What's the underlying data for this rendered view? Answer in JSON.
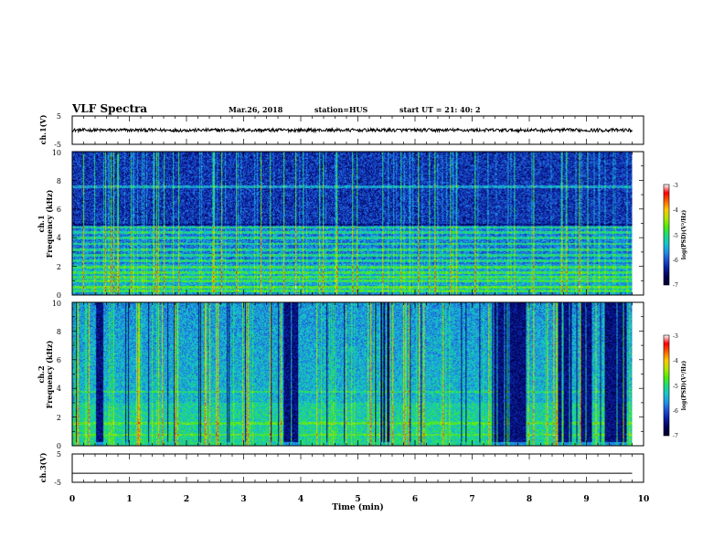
{
  "header": {
    "title": "VLF Spectra",
    "date": "Mar.26, 2018",
    "station": "station=HUS",
    "start": "start UT = 21: 40: 2"
  },
  "chart_data": [
    {
      "type": "line",
      "name": "ch1-voltage",
      "ylabel": "ch.1(V)",
      "xlim": [
        0,
        10
      ],
      "ylim": [
        -5,
        5
      ],
      "yticks": [
        "5",
        "-5"
      ],
      "trace_level": 0,
      "trace_amplitude": 0.6
    },
    {
      "type": "heatmap",
      "name": "ch1-spectrogram",
      "ylabel_line1": "ch.1",
      "ylabel_line2": "Frequency (kHz)",
      "xlim": [
        0,
        10
      ],
      "ylim": [
        0,
        10
      ],
      "yticks": [
        "0",
        "2",
        "4",
        "6",
        "8",
        "10"
      ],
      "data_end_min": 9.8,
      "colorbar": {
        "label": "log(PSD)(V²/Hz)",
        "range": [
          -7,
          -3
        ],
        "ticks": [
          "-3",
          "-4",
          "-5",
          "-6",
          "-7"
        ]
      },
      "horizontal_bands_khz": [
        0.3,
        0.55,
        1.0,
        1.3,
        1.6,
        2.0,
        2.4,
        2.8,
        3.2,
        3.6,
        4.0,
        4.4,
        4.8,
        7.6
      ]
    },
    {
      "type": "heatmap",
      "name": "ch2-spectrogram",
      "ylabel_line1": "ch.2",
      "ylabel_line2": "Frequency (kHz)",
      "xlim": [
        0,
        10
      ],
      "ylim": [
        0,
        10
      ],
      "yticks": [
        "0",
        "2",
        "4",
        "6",
        "8",
        "10"
      ],
      "data_end_min": 9.8,
      "colorbar": {
        "label": "log(PSD)(V²/Hz)",
        "range": [
          -7,
          -3
        ],
        "ticks": [
          "-3",
          "-4",
          "-5",
          "-6",
          "-7"
        ]
      },
      "dark_intervals_min": [
        [
          0.4,
          0.55
        ],
        [
          3.7,
          3.95
        ],
        [
          5.4,
          5.55
        ],
        [
          7.35,
          7.95
        ],
        [
          8.5,
          8.75
        ],
        [
          8.9,
          9.1
        ],
        [
          9.3,
          9.7
        ]
      ]
    },
    {
      "type": "line",
      "name": "ch3-voltage",
      "ylabel": "ch.3(V)",
      "xlim": [
        0,
        10
      ],
      "ylim": [
        -5,
        5
      ],
      "yticks": [
        "5",
        "-5"
      ],
      "trace_level": -1.8,
      "xlabel": "Time (min)",
      "xticks": [
        "0",
        "1",
        "2",
        "3",
        "4",
        "5",
        "6",
        "7",
        "8",
        "9",
        "10"
      ]
    }
  ],
  "colors": {
    "colormap": [
      "#000033",
      "#00004f",
      "#0a1ea0",
      "#1e50d2",
      "#1e96e6",
      "#14c8c8",
      "#1edc78",
      "#50f000",
      "#b4e600",
      "#ffc800",
      "#ff6400",
      "#ff0000",
      "#ffffff"
    ]
  }
}
